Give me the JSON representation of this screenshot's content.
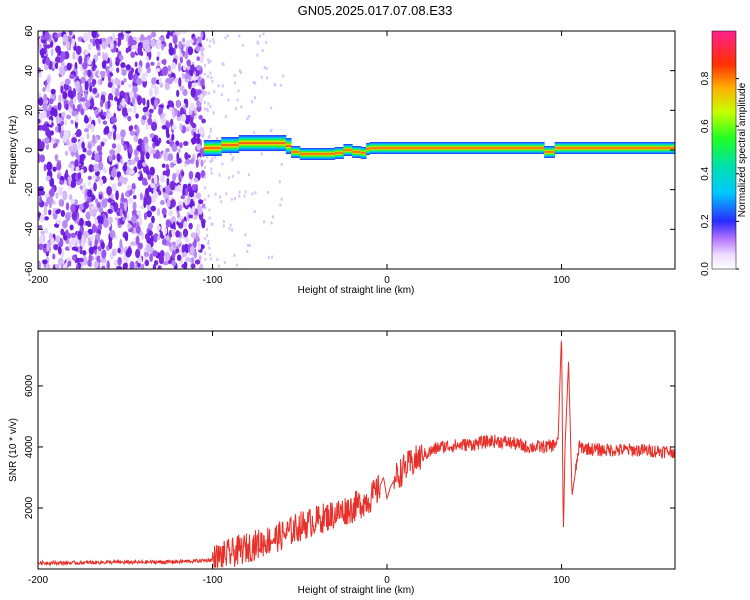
{
  "title": "GN05.2025.017.07.08.E33",
  "colors": {
    "snr_line": "#e8302a",
    "axis": "#000000",
    "background": "#ffffff",
    "spectrogram_noise": "#7a2be0",
    "spectrogram_ridge": "#ff2020"
  },
  "chart_data": [
    {
      "type": "heatmap",
      "xlabel": "Height of straight line (km)",
      "ylabel": "Frequency (Hz)",
      "xlim": [
        -200,
        165
      ],
      "ylim": [
        -60,
        60
      ],
      "x_ticks": [
        -200,
        -100,
        0,
        100
      ],
      "y_ticks": [
        -60,
        -40,
        -20,
        0,
        20,
        40,
        60
      ],
      "colorbar": {
        "label": "Normalized spectral amplitude",
        "range": [
          0.0,
          1.0
        ],
        "ticks": [
          0.0,
          0.2,
          0.4,
          0.6,
          0.8
        ]
      },
      "ridge": {
        "x": [
          -105,
          -95,
          -85,
          -75,
          -65,
          -58,
          -55,
          -50,
          -40,
          -30,
          -25,
          -20,
          -15,
          -12,
          -10,
          0,
          20,
          40,
          60,
          80,
          90,
          93,
          96,
          100,
          120,
          140,
          165
        ],
        "y": [
          0,
          2,
          3,
          4,
          3,
          4,
          0,
          -2,
          -2,
          -2,
          -1,
          1,
          -3,
          0,
          1,
          1,
          1,
          1,
          1,
          1,
          1,
          -3,
          1,
          1,
          1,
          1,
          1
        ]
      },
      "noise_region_x": [
        -200,
        -105
      ]
    },
    {
      "type": "line",
      "xlabel": "Height of straight line (km)",
      "ylabel": "SNR (10 * v/v)",
      "xlim": [
        -200,
        165
      ],
      "ylim": [
        0,
        7800
      ],
      "x_ticks": [
        -200,
        -100,
        0,
        100
      ],
      "y_ticks": [
        2000,
        4000,
        6000
      ],
      "series": [
        {
          "x": [
            -200,
            -180,
            -160,
            -140,
            -120,
            -110,
            -100,
            -90,
            -80,
            -70,
            -60,
            -50,
            -40,
            -30,
            -20,
            -10,
            -5,
            -2,
            0,
            2,
            5,
            10,
            20,
            30,
            40,
            50,
            60,
            70,
            80,
            90,
            95,
            98,
            100,
            101,
            102,
            104,
            106,
            110,
            120,
            140,
            165
          ],
          "y": [
            200,
            200,
            220,
            220,
            240,
            260,
            300,
            500,
            700,
            900,
            1100,
            1400,
            1600,
            1800,
            2000,
            2300,
            2600,
            3000,
            2300,
            2700,
            3000,
            3300,
            3700,
            4000,
            4050,
            4100,
            4200,
            4150,
            4000,
            4000,
            4050,
            4200,
            7800,
            1000,
            4000,
            6800,
            2400,
            4000,
            3900,
            3900,
            3850
          ]
        }
      ]
    }
  ]
}
